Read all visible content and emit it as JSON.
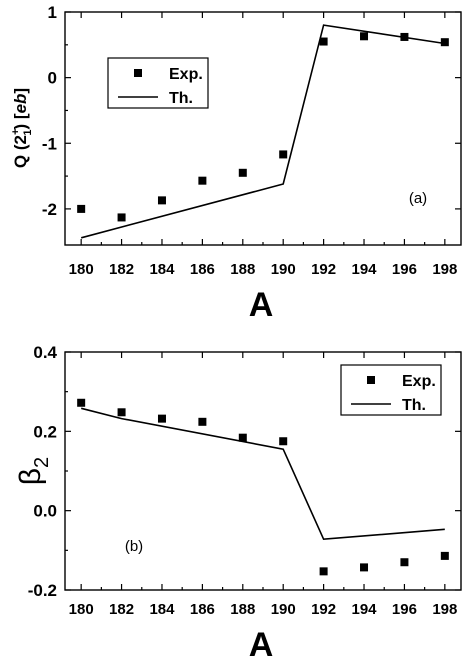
{
  "chart_data": [
    {
      "type": "scatter",
      "panel_label": "(a)",
      "xlabel": "A",
      "ylabel_main": "Q (2",
      "ylabel_sup": "+",
      "ylabel_sub": "1",
      "ylabel_tail": ") [",
      "ylabel_unit": "eb",
      "ylabel_end": "]",
      "xlim": [
        179.2,
        198.8
      ],
      "ylim": [
        -2.55,
        1.0
      ],
      "x_ticks": [
        180,
        182,
        184,
        186,
        188,
        190,
        192,
        194,
        196,
        198
      ],
      "x_tick_labels": [
        "180",
        "182",
        "184",
        "186",
        "188",
        "190",
        "192",
        "194",
        "196",
        "198"
      ],
      "y_ticks": [
        1,
        0,
        -1,
        -2
      ],
      "y_tick_labels": [
        "1",
        "0",
        "-1",
        "-2"
      ],
      "legend_position": "upper-left",
      "series": [
        {
          "name": "Exp.",
          "style": "square-markers",
          "x": [
            180,
            182,
            184,
            186,
            188,
            190,
            192,
            194,
            196,
            198
          ],
          "y": [
            -2.0,
            -2.13,
            -1.87,
            -1.57,
            -1.45,
            -1.17,
            0.55,
            0.63,
            0.62,
            0.54
          ]
        },
        {
          "name": "Th.",
          "style": "line",
          "x": [
            180,
            190,
            192,
            198
          ],
          "y": [
            -2.44,
            -1.62,
            0.8,
            0.52
          ]
        }
      ]
    },
    {
      "type": "scatter",
      "panel_label": "(b)",
      "xlabel": "A",
      "ylabel_main": "β",
      "ylabel_sub": "2",
      "xlim": [
        179.2,
        198.8
      ],
      "ylim": [
        -0.2,
        0.4
      ],
      "x_ticks": [
        180,
        182,
        184,
        186,
        188,
        190,
        192,
        194,
        196,
        198
      ],
      "x_tick_labels": [
        "180",
        "182",
        "184",
        "186",
        "188",
        "190",
        "192",
        "194",
        "196",
        "198"
      ],
      "y_ticks": [
        0.4,
        0.2,
        0.0,
        -0.2
      ],
      "y_tick_labels": [
        "0.4",
        "0.2",
        "0.0",
        "-0.2"
      ],
      "legend_position": "upper-right",
      "series": [
        {
          "name": "Exp.",
          "style": "square-markers",
          "x": [
            180,
            182,
            184,
            186,
            188,
            190,
            192,
            194,
            196,
            198
          ],
          "y": [
            0.272,
            0.248,
            0.232,
            0.224,
            0.184,
            0.175,
            -0.153,
            -0.143,
            -0.13,
            -0.114
          ]
        },
        {
          "name": "Th.",
          "style": "line",
          "x": [
            180,
            182,
            190,
            192,
            198
          ],
          "y": [
            0.258,
            0.232,
            0.155,
            -0.072,
            -0.047
          ]
        }
      ]
    }
  ]
}
